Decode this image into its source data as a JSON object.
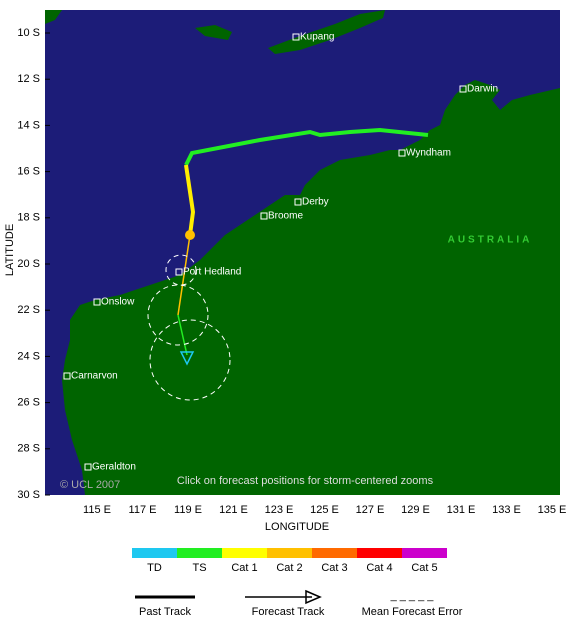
{
  "map": {
    "lat_labels": [
      "10 S",
      "12 S",
      "14 S",
      "16 S",
      "18 S",
      "20 S",
      "22 S",
      "24 S",
      "26 S",
      "28 S",
      "30 S"
    ],
    "lon_labels": [
      "115 E",
      "117 E",
      "119 E",
      "121 E",
      "123 E",
      "125 E",
      "127 E",
      "129 E",
      "131 E",
      "133 E",
      "135 E"
    ],
    "y_axis_title": "LATITUDE",
    "x_axis_title": "LONGITUDE",
    "region_label": "AUSTRALIA",
    "credit": "© UCL 2007",
    "note": "Click on forecast positions for storm-centered zooms",
    "cities": [
      "Kupang",
      "Darwin",
      "Wyndham",
      "Derby",
      "Broome",
      "Port Hedland",
      "Onslow",
      "Carnarvon",
      "Geraldton"
    ]
  },
  "legend": {
    "categories": [
      "TD",
      "TS",
      "Cat 1",
      "Cat 2",
      "Cat 3",
      "Cat 4",
      "Cat 5"
    ],
    "colors": [
      "#1ec8f0",
      "#22ee22",
      "#ffff00",
      "#ffc000",
      "#ff6a00",
      "#ff0000",
      "#cc00cc"
    ],
    "past_track": "Past Track",
    "forecast_track": "Forecast Track",
    "error": "Mean Forecast Error",
    "error_symbol": "_ _ _ _ _"
  }
}
